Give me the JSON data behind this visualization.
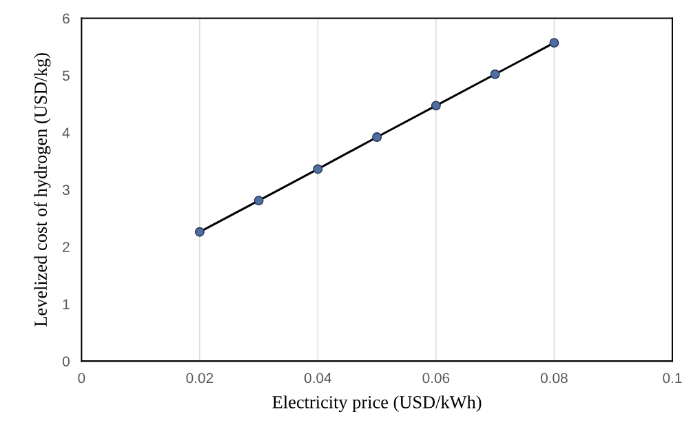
{
  "chart_data": {
    "type": "line",
    "xlabel": "Electricity price (USD/kWh)",
    "ylabel": "Levelized cost of hydrogen (USD/kg)",
    "x": [
      0.02,
      0.03,
      0.04,
      0.05,
      0.06,
      0.07,
      0.08
    ],
    "series": [
      {
        "color": "#000000",
        "values": [
          2.26,
          2.81,
          3.36,
          3.92,
          4.47,
          5.02,
          5.57
        ]
      }
    ],
    "marker": "circle",
    "line_style": "solid",
    "xlim": [
      0,
      0.1
    ],
    "xticks": [
      0,
      0.02,
      0.04,
      0.06,
      0.08,
      0.1
    ],
    "ylim": [
      0,
      6
    ],
    "yticks": [
      0,
      1,
      2,
      3,
      4,
      5,
      6
    ],
    "grid": "x"
  }
}
